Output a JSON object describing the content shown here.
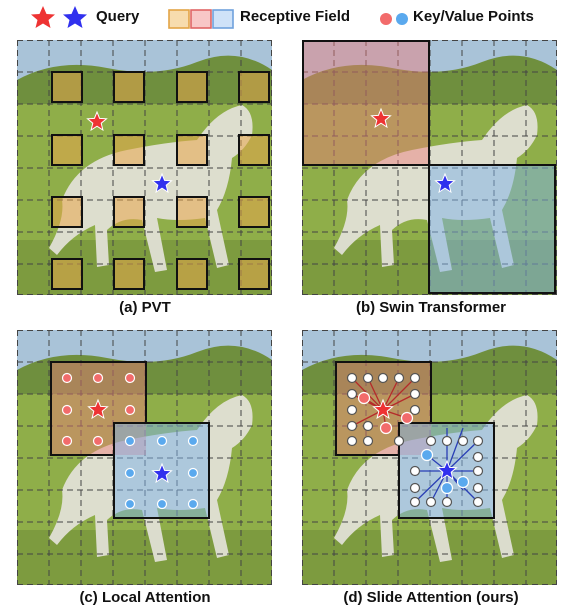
{
  "legend": {
    "query": "Query",
    "receptive_field": "Receptive Field",
    "keyvalue": "Key/Value Points",
    "colors": {
      "red": "#ee3333",
      "blue": "#3333ee",
      "orange": "#e8a54a",
      "pink": "#f07a7a",
      "light_blue": "#7eb2ea"
    }
  },
  "panels": {
    "a": {
      "caption": "(a) PVT"
    },
    "b": {
      "caption": "(b) Swin Transformer"
    },
    "c": {
      "caption": "(c) Local Attention"
    },
    "d": {
      "caption": "(d) Slide Attention (ours)"
    }
  }
}
